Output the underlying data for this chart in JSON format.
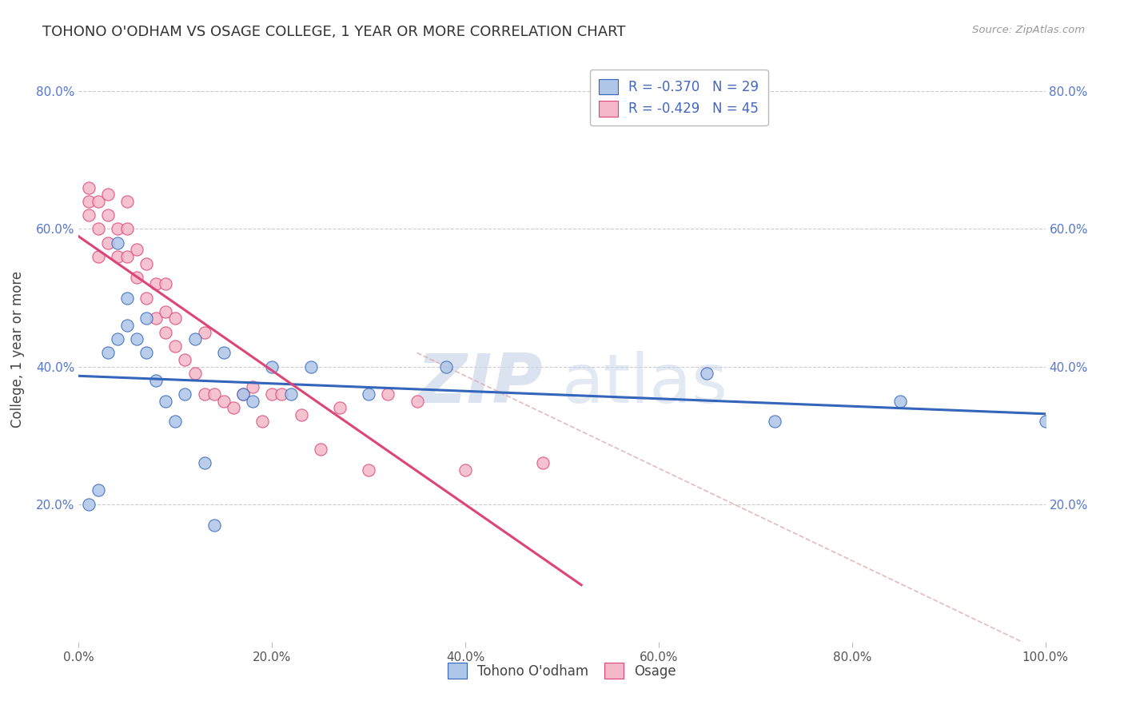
{
  "title": "TOHONO O'ODHAM VS OSAGE COLLEGE, 1 YEAR OR MORE CORRELATION CHART",
  "source": "Source: ZipAtlas.com",
  "ylabel": "College, 1 year or more",
  "xlabel_legend1": "Tohono O'odham",
  "xlabel_legend2": "Osage",
  "r1": -0.37,
  "n1": 29,
  "r2": -0.429,
  "n2": 45,
  "color1": "#aec6e8",
  "color2": "#f4b8c8",
  "line1_color": "#3366bb",
  "line2_color": "#dd4477",
  "diag_color": "#ddaaaa",
  "xlim": [
    0.0,
    1.0
  ],
  "ylim": [
    0.0,
    0.85
  ],
  "xticks": [
    0.0,
    0.2,
    0.4,
    0.6,
    0.8,
    1.0
  ],
  "yticks": [
    0.2,
    0.4,
    0.6,
    0.8
  ],
  "xtick_labels": [
    "0.0%",
    "20.0%",
    "40.0%",
    "60.0%",
    "80.0%",
    "100.0%"
  ],
  "ytick_labels": [
    "20.0%",
    "40.0%",
    "60.0%",
    "80.0%"
  ],
  "tohono_x": [
    0.01,
    0.02,
    0.03,
    0.04,
    0.04,
    0.05,
    0.05,
    0.06,
    0.07,
    0.07,
    0.08,
    0.09,
    0.1,
    0.11,
    0.12,
    0.13,
    0.14,
    0.15,
    0.17,
    0.18,
    0.2,
    0.22,
    0.24,
    0.3,
    0.38,
    0.65,
    0.72,
    0.85,
    1.0
  ],
  "tohono_y": [
    0.2,
    0.22,
    0.42,
    0.44,
    0.58,
    0.46,
    0.5,
    0.44,
    0.42,
    0.47,
    0.38,
    0.35,
    0.32,
    0.36,
    0.44,
    0.26,
    0.17,
    0.42,
    0.36,
    0.35,
    0.4,
    0.36,
    0.4,
    0.36,
    0.4,
    0.39,
    0.32,
    0.35,
    0.32
  ],
  "osage_x": [
    0.01,
    0.01,
    0.01,
    0.02,
    0.02,
    0.02,
    0.03,
    0.03,
    0.03,
    0.04,
    0.04,
    0.05,
    0.05,
    0.05,
    0.06,
    0.06,
    0.07,
    0.07,
    0.08,
    0.08,
    0.09,
    0.09,
    0.09,
    0.1,
    0.1,
    0.11,
    0.12,
    0.13,
    0.13,
    0.14,
    0.15,
    0.16,
    0.17,
    0.18,
    0.19,
    0.2,
    0.21,
    0.23,
    0.25,
    0.27,
    0.3,
    0.32,
    0.35,
    0.4,
    0.48
  ],
  "osage_y": [
    0.62,
    0.64,
    0.66,
    0.56,
    0.6,
    0.64,
    0.58,
    0.62,
    0.65,
    0.56,
    0.6,
    0.56,
    0.6,
    0.64,
    0.53,
    0.57,
    0.5,
    0.55,
    0.47,
    0.52,
    0.45,
    0.48,
    0.52,
    0.43,
    0.47,
    0.41,
    0.39,
    0.36,
    0.45,
    0.36,
    0.35,
    0.34,
    0.36,
    0.37,
    0.32,
    0.36,
    0.36,
    0.33,
    0.28,
    0.34,
    0.25,
    0.36,
    0.35,
    0.25,
    0.26
  ],
  "watermark_zip": "ZIP",
  "watermark_atlas": "atlas",
  "background_color": "#ffffff",
  "grid_color": "#cccccc"
}
